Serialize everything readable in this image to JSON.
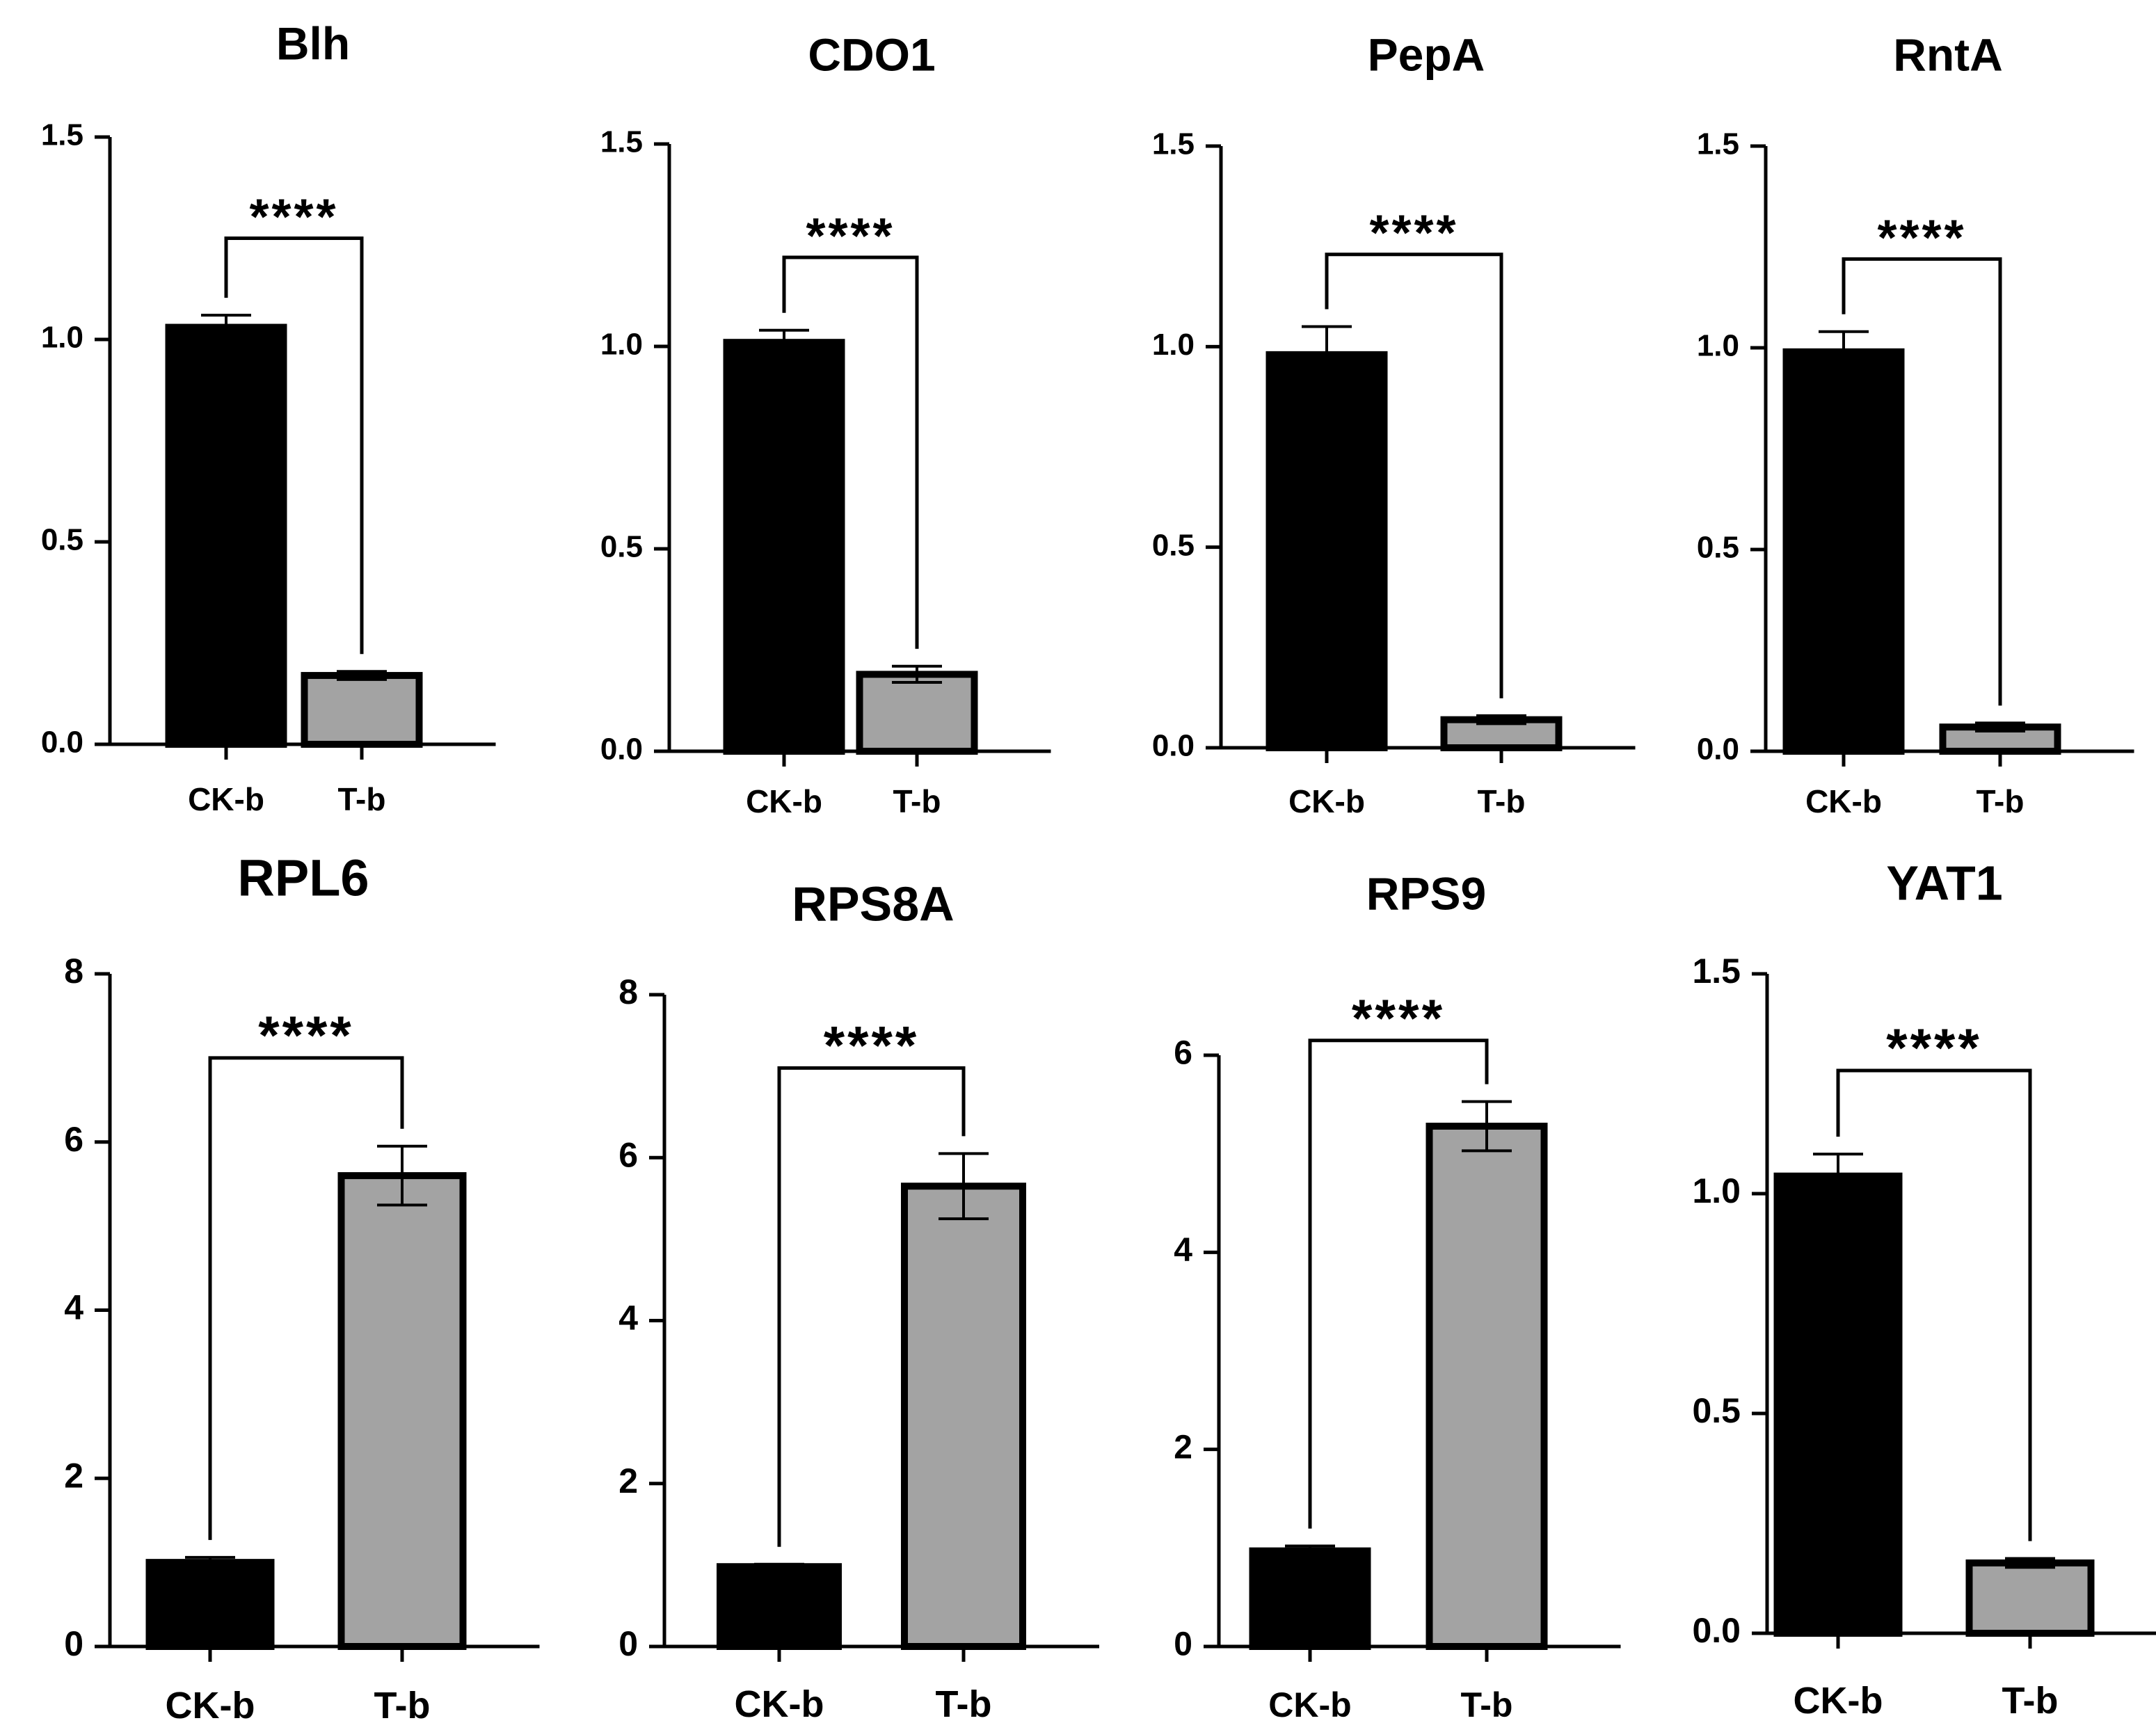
{
  "figure_colors": {
    "control": "#000000",
    "treatment": "#a3a3a3",
    "axis": "#000000"
  },
  "chart_data": [
    {
      "type": "bar",
      "title": "Blh",
      "categories": [
        "CK-b",
        "T-b"
      ],
      "values": [
        1.03,
        0.17
      ],
      "errors": [
        0.03,
        0.01
      ],
      "ylim": [
        0,
        1.5
      ],
      "ticks": [
        0,
        0.5,
        1.0,
        1.5
      ],
      "tick_labels": [
        "0.0",
        "0.5",
        "1.0",
        "1.5"
      ],
      "significance": "****",
      "bracket_level": 1.25
    },
    {
      "type": "bar",
      "title": "CDO1",
      "categories": [
        "CK-b",
        "T-b"
      ],
      "values": [
        1.01,
        0.19
      ],
      "errors": [
        0.03,
        0.02
      ],
      "ylim": [
        0,
        1.5
      ],
      "ticks": [
        0,
        0.5,
        1.0,
        1.5
      ],
      "tick_labels": [
        "0.0",
        "0.5",
        "1.0",
        "1.5"
      ],
      "significance": "****",
      "bracket_level": 1.22
    },
    {
      "type": "bar",
      "title": "PepA",
      "categories": [
        "CK-b",
        "T-b"
      ],
      "values": [
        0.98,
        0.07
      ],
      "errors": [
        0.07,
        0.01
      ],
      "ylim": [
        0,
        1.5
      ],
      "ticks": [
        0,
        0.5,
        1.0,
        1.5
      ],
      "tick_labels": [
        "0.0",
        "0.5",
        "1.0",
        "1.5"
      ],
      "significance": "****",
      "bracket_level": 1.23
    },
    {
      "type": "bar",
      "title": "RntA",
      "categories": [
        "CK-b",
        "T-b"
      ],
      "values": [
        0.99,
        0.06
      ],
      "errors": [
        0.05,
        0.01
      ],
      "ylim": [
        0,
        1.5
      ],
      "ticks": [
        0,
        0.5,
        1.0,
        1.5
      ],
      "tick_labels": [
        "0.0",
        "0.5",
        "1.0",
        "1.5"
      ],
      "significance": "****",
      "bracket_level": 1.22
    },
    {
      "type": "bar",
      "title": "RPL6",
      "categories": [
        "CK-b",
        "T-b"
      ],
      "values": [
        1.0,
        5.6
      ],
      "errors": [
        0.06,
        0.35
      ],
      "ylim": [
        0,
        8
      ],
      "ticks": [
        0,
        2,
        4,
        6,
        8
      ],
      "tick_labels": [
        "0",
        "2",
        "4",
        "6",
        "8"
      ],
      "significance": "****",
      "bracket_level": 7.0
    },
    {
      "type": "bar",
      "title": "RPS8A",
      "categories": [
        "CK-b",
        "T-b"
      ],
      "values": [
        0.98,
        5.65
      ],
      "errors": [
        0.03,
        0.4
      ],
      "ylim": [
        0,
        8
      ],
      "ticks": [
        0,
        2,
        4,
        6,
        8
      ],
      "tick_labels": [
        "0",
        "2",
        "4",
        "6",
        "8"
      ],
      "significance": "****",
      "bracket_level": 7.1
    },
    {
      "type": "bar",
      "title": "RPS9",
      "categories": [
        "CK-b",
        "T-b"
      ],
      "values": [
        0.97,
        5.28
      ],
      "errors": [
        0.05,
        0.25
      ],
      "ylim": [
        0,
        6
      ],
      "ticks": [
        0,
        2,
        4,
        6
      ],
      "tick_labels": [
        "0",
        "2",
        "4",
        "6"
      ],
      "significance": "****",
      "bracket_level": 6.15
    },
    {
      "type": "bar",
      "title": "YAT1",
      "categories": [
        "CK-b",
        "T-b"
      ],
      "values": [
        1.04,
        0.16
      ],
      "errors": [
        0.05,
        0.01
      ],
      "ylim": [
        0,
        1.5
      ],
      "ticks": [
        0,
        0.5,
        1.0,
        1.5
      ],
      "tick_labels": [
        "0.0",
        "0.5",
        "1.0",
        "1.5"
      ],
      "significance": "****",
      "bracket_level": 1.28
    }
  ]
}
